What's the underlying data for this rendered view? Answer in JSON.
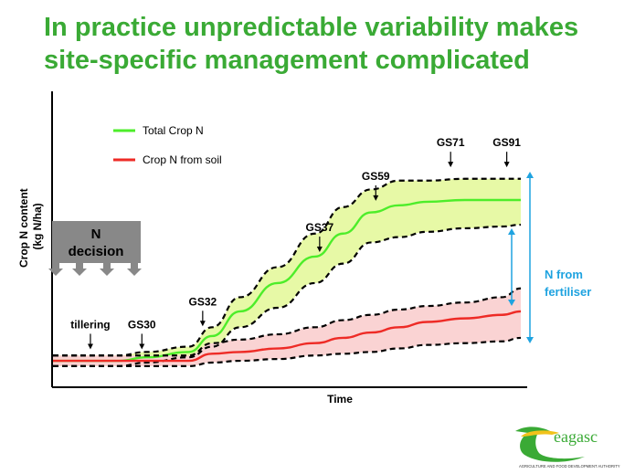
{
  "slide": {
    "title_line1": "In practice unpredictable variability makes",
    "title_line2": "site-specific management complicated"
  },
  "chart_data": {
    "type": "line",
    "xlabel": "Time",
    "ylabel": "Crop N content (kg N/ha)",
    "legend": {
      "placement": "top-left",
      "entries": [
        {
          "name": "Total Crop N",
          "color": "#4ded2a"
        },
        {
          "name": "Crop N from soil",
          "color": "#ee2b26"
        }
      ]
    },
    "x_range": [
      0,
      100
    ],
    "y_range": [
      0,
      100
    ],
    "series": [
      {
        "name": "Total Crop N",
        "color": "#4ded2a",
        "band_color": "#e7f9a6",
        "x": [
          0,
          14,
          20,
          29,
          34,
          40,
          48,
          56,
          62,
          68,
          74,
          80,
          88,
          96,
          100
        ],
        "y": [
          1,
          1,
          3,
          6,
          15,
          29,
          45,
          60,
          73,
          85,
          89,
          91,
          92,
          92,
          92
        ],
        "upper": [
          4,
          4,
          6,
          9,
          20,
          37,
          54,
          73,
          88,
          98,
          103,
          103,
          104,
          104,
          104
        ],
        "lower": [
          -2,
          -2,
          0,
          3,
          9,
          20,
          31,
          45,
          56,
          68,
          71,
          74,
          76,
          77,
          78
        ]
      },
      {
        "name": "Crop N from soil",
        "color": "#ee2b26",
        "band_color": "#fad3d3",
        "x": [
          0,
          14,
          20,
          29,
          34,
          40,
          48,
          56,
          62,
          68,
          74,
          80,
          88,
          96,
          100
        ],
        "y": [
          1,
          1,
          1,
          1,
          5,
          6,
          8,
          11,
          14,
          17,
          20,
          23,
          25,
          27,
          29
        ],
        "upper": [
          4,
          4,
          4,
          4,
          11,
          13,
          16,
          20,
          24,
          27,
          30,
          32,
          34,
          37,
          42
        ],
        "lower": [
          -2,
          -2,
          -2,
          -2,
          0,
          1,
          2,
          4,
          5,
          6,
          8,
          10,
          11,
          12,
          14
        ]
      }
    ],
    "annotations": [
      {
        "label": "tillering",
        "x": 8,
        "y": 7
      },
      {
        "label": "GS30",
        "x": 19,
        "y": 7
      },
      {
        "label": "GS32",
        "x": 32,
        "y": 20
      },
      {
        "label": "GS37",
        "x": 57,
        "y": 62
      },
      {
        "label": "GS59",
        "x": 69,
        "y": 91
      },
      {
        "label": "GS71",
        "x": 85,
        "y": 110
      },
      {
        "label": "GS91",
        "x": 97,
        "y": 110
      }
    ],
    "n_decision": {
      "label_line1": "N",
      "label_line2": "decision",
      "color": "#888888"
    },
    "fertiliser": {
      "label_line1": "N from",
      "label_line2": "fertiliser",
      "color": "#1fa3e0"
    }
  },
  "logo": {
    "text": "eagasc",
    "tagline": "AGRICULTURE AND FOOD DEVELOPMENT AUTHORITY",
    "color": "#3aaa35"
  }
}
